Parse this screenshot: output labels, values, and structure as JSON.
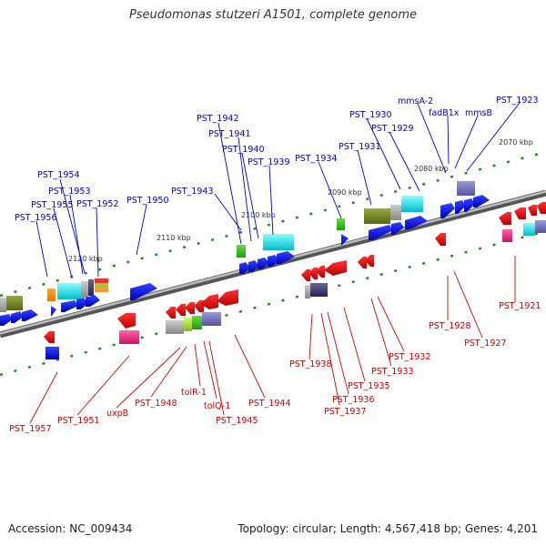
{
  "title": "Pseudomonas stutzeri A1501, complete genome",
  "accession": "Accession: NC_009434",
  "summary": "Topology: circular; Length: 4,567,418 bp; Genes: 4,201",
  "colors": {
    "forward_label": "#0000cc",
    "reverse_label": "#cc0000",
    "forward_gene": "#0000ee",
    "reverse_gene": "#ee0000",
    "backbone": "#888888",
    "tick": "#228822"
  },
  "kbp_labels": [
    "2070 kbp",
    "2080 kbp",
    "2090 kbp",
    "2100 kbp",
    "2110 kbp",
    "2120 kbp"
  ],
  "forward_labels": [
    "mmsA-2",
    "fadB1x",
    "mmsB",
    "PST_1923",
    "PST_1930",
    "PST_1929",
    "PST_1931",
    "PST_1934",
    "PST_1942",
    "PST_1941",
    "PST_1940",
    "PST_1939",
    "PST_1943",
    "PST_1950",
    "PST_1954",
    "PST_1953",
    "PST_1955",
    "PST_1952",
    "PST_1956"
  ],
  "reverse_labels": [
    "PST_1921",
    "PST_1928",
    "PST_1927",
    "PST_1932",
    "PST_1933",
    "PST_1935",
    "PST_1936",
    "PST_1937",
    "PST_1938",
    "PST_1944",
    "PST_1945",
    "tolQ-1",
    "tolR-1",
    "PST_1948",
    "uxpB",
    "PST_1951",
    "PST_1957"
  ]
}
